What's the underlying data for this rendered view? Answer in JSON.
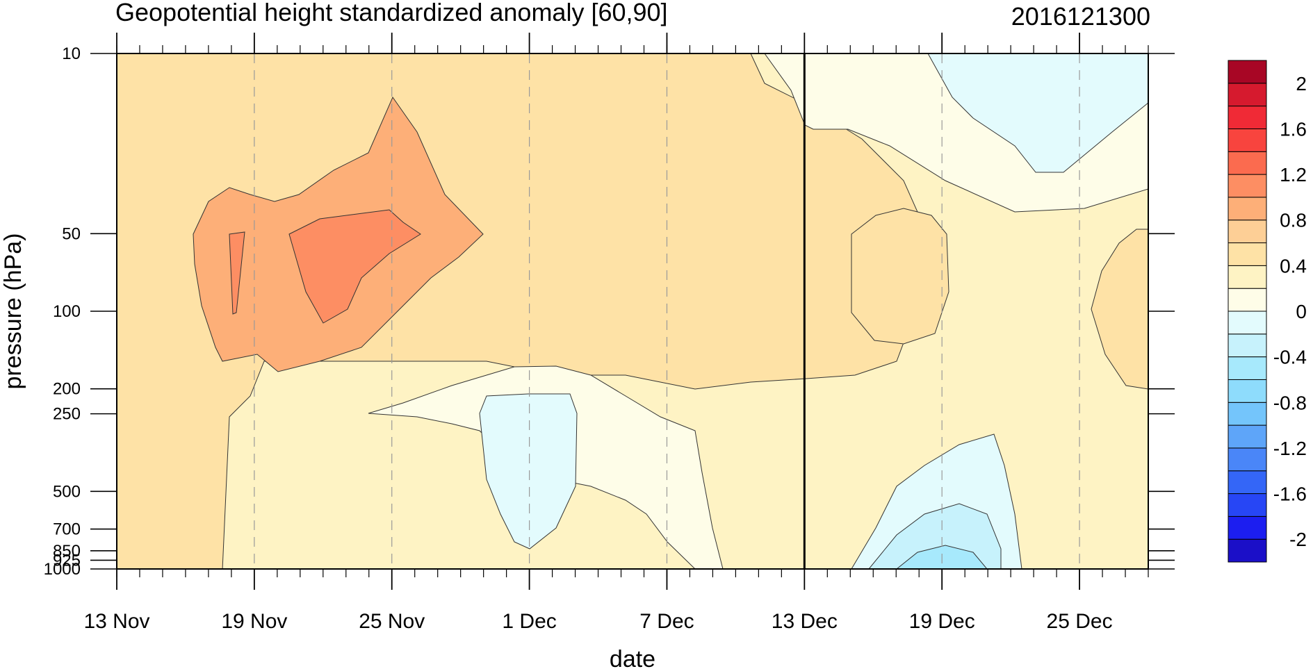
{
  "chart_data": {
    "type": "heatmap",
    "title": "Geopotential height standardized anomaly [60,90]",
    "subtitle": "2016121300",
    "xlabel": "date",
    "ylabel": "pressure (hPa)",
    "x_ticks": [
      "13 Nov",
      "19 Nov",
      "25 Nov",
      "1 Dec",
      "7 Dec",
      "13 Dec",
      "19 Dec",
      "25 Dec"
    ],
    "x_tick_dates": [
      "2016-11-13",
      "2016-11-19",
      "2016-11-25",
      "2016-12-01",
      "2016-12-07",
      "2016-12-13",
      "2016-12-19",
      "2016-12-25"
    ],
    "x_range": [
      "2016-11-13",
      "2016-12-28"
    ],
    "y_ticks": [
      "10",
      "50",
      "100",
      "200",
      "250",
      "500",
      "700",
      "850",
      "925",
      "1000"
    ],
    "y_tick_values": [
      10,
      50,
      100,
      200,
      250,
      500,
      700,
      850,
      925,
      1000
    ],
    "y_range": [
      1000,
      10
    ],
    "y_scale": "log",
    "forecast_start": "2016-12-13",
    "grid": "dashed vertical lines at x ticks",
    "colorbar": {
      "placement": "right",
      "levels": [
        -2.2,
        -2,
        -1.8,
        -1.6,
        -1.4,
        -1.2,
        -1,
        -0.8,
        -0.6,
        -0.4,
        -0.2,
        0,
        0.2,
        0.4,
        0.6,
        0.8,
        1,
        1.2,
        1.4,
        1.6,
        1.8,
        2,
        2.2
      ],
      "colors": [
        "#1b0fc8",
        "#1c1ef0",
        "#2746f5",
        "#3466f7",
        "#4a86f8",
        "#5ea5f9",
        "#74c5fb",
        "#8edcfc",
        "#a7e9fc",
        "#c7f2fc",
        "#e3fbfd",
        "#fefde8",
        "#fef3c4",
        "#fee2a6",
        "#fdcf96",
        "#fdaf78",
        "#fd8e63",
        "#fb6b4f",
        "#f8443e",
        "#f02a36",
        "#d61a2e",
        "#a80625"
      ],
      "labels": [
        "2",
        "1.6",
        "1.2",
        "0.8",
        "0.4",
        "0",
        "-0.4",
        "-0.8",
        "-1.2",
        "-1.6",
        "-2"
      ]
    },
    "regions": [
      {
        "name": "background",
        "value": 0.3
      },
      {
        "name": "upper-early",
        "value": 0.5
      },
      {
        "name": "upper-mid",
        "value": 0.9
      },
      {
        "name": "core-left",
        "value": 1.1
      },
      {
        "name": "core-right",
        "value": 1.1
      },
      {
        "name": "mid-neutral",
        "value": 0.1
      },
      {
        "name": "neg-center",
        "value": -0.1
      },
      {
        "name": "upper-late-neutral",
        "value": 0.1
      },
      {
        "name": "upper-late-neg",
        "value": -0.1
      },
      {
        "name": "late-blob",
        "value": 0.5
      },
      {
        "name": "right-edge-blob",
        "value": 0.5
      },
      {
        "name": "late-surface-neg",
        "value": -0.1
      },
      {
        "name": "late-surface-neg2",
        "value": -0.3
      },
      {
        "name": "late-surface-neg3",
        "value": -0.5
      }
    ]
  }
}
